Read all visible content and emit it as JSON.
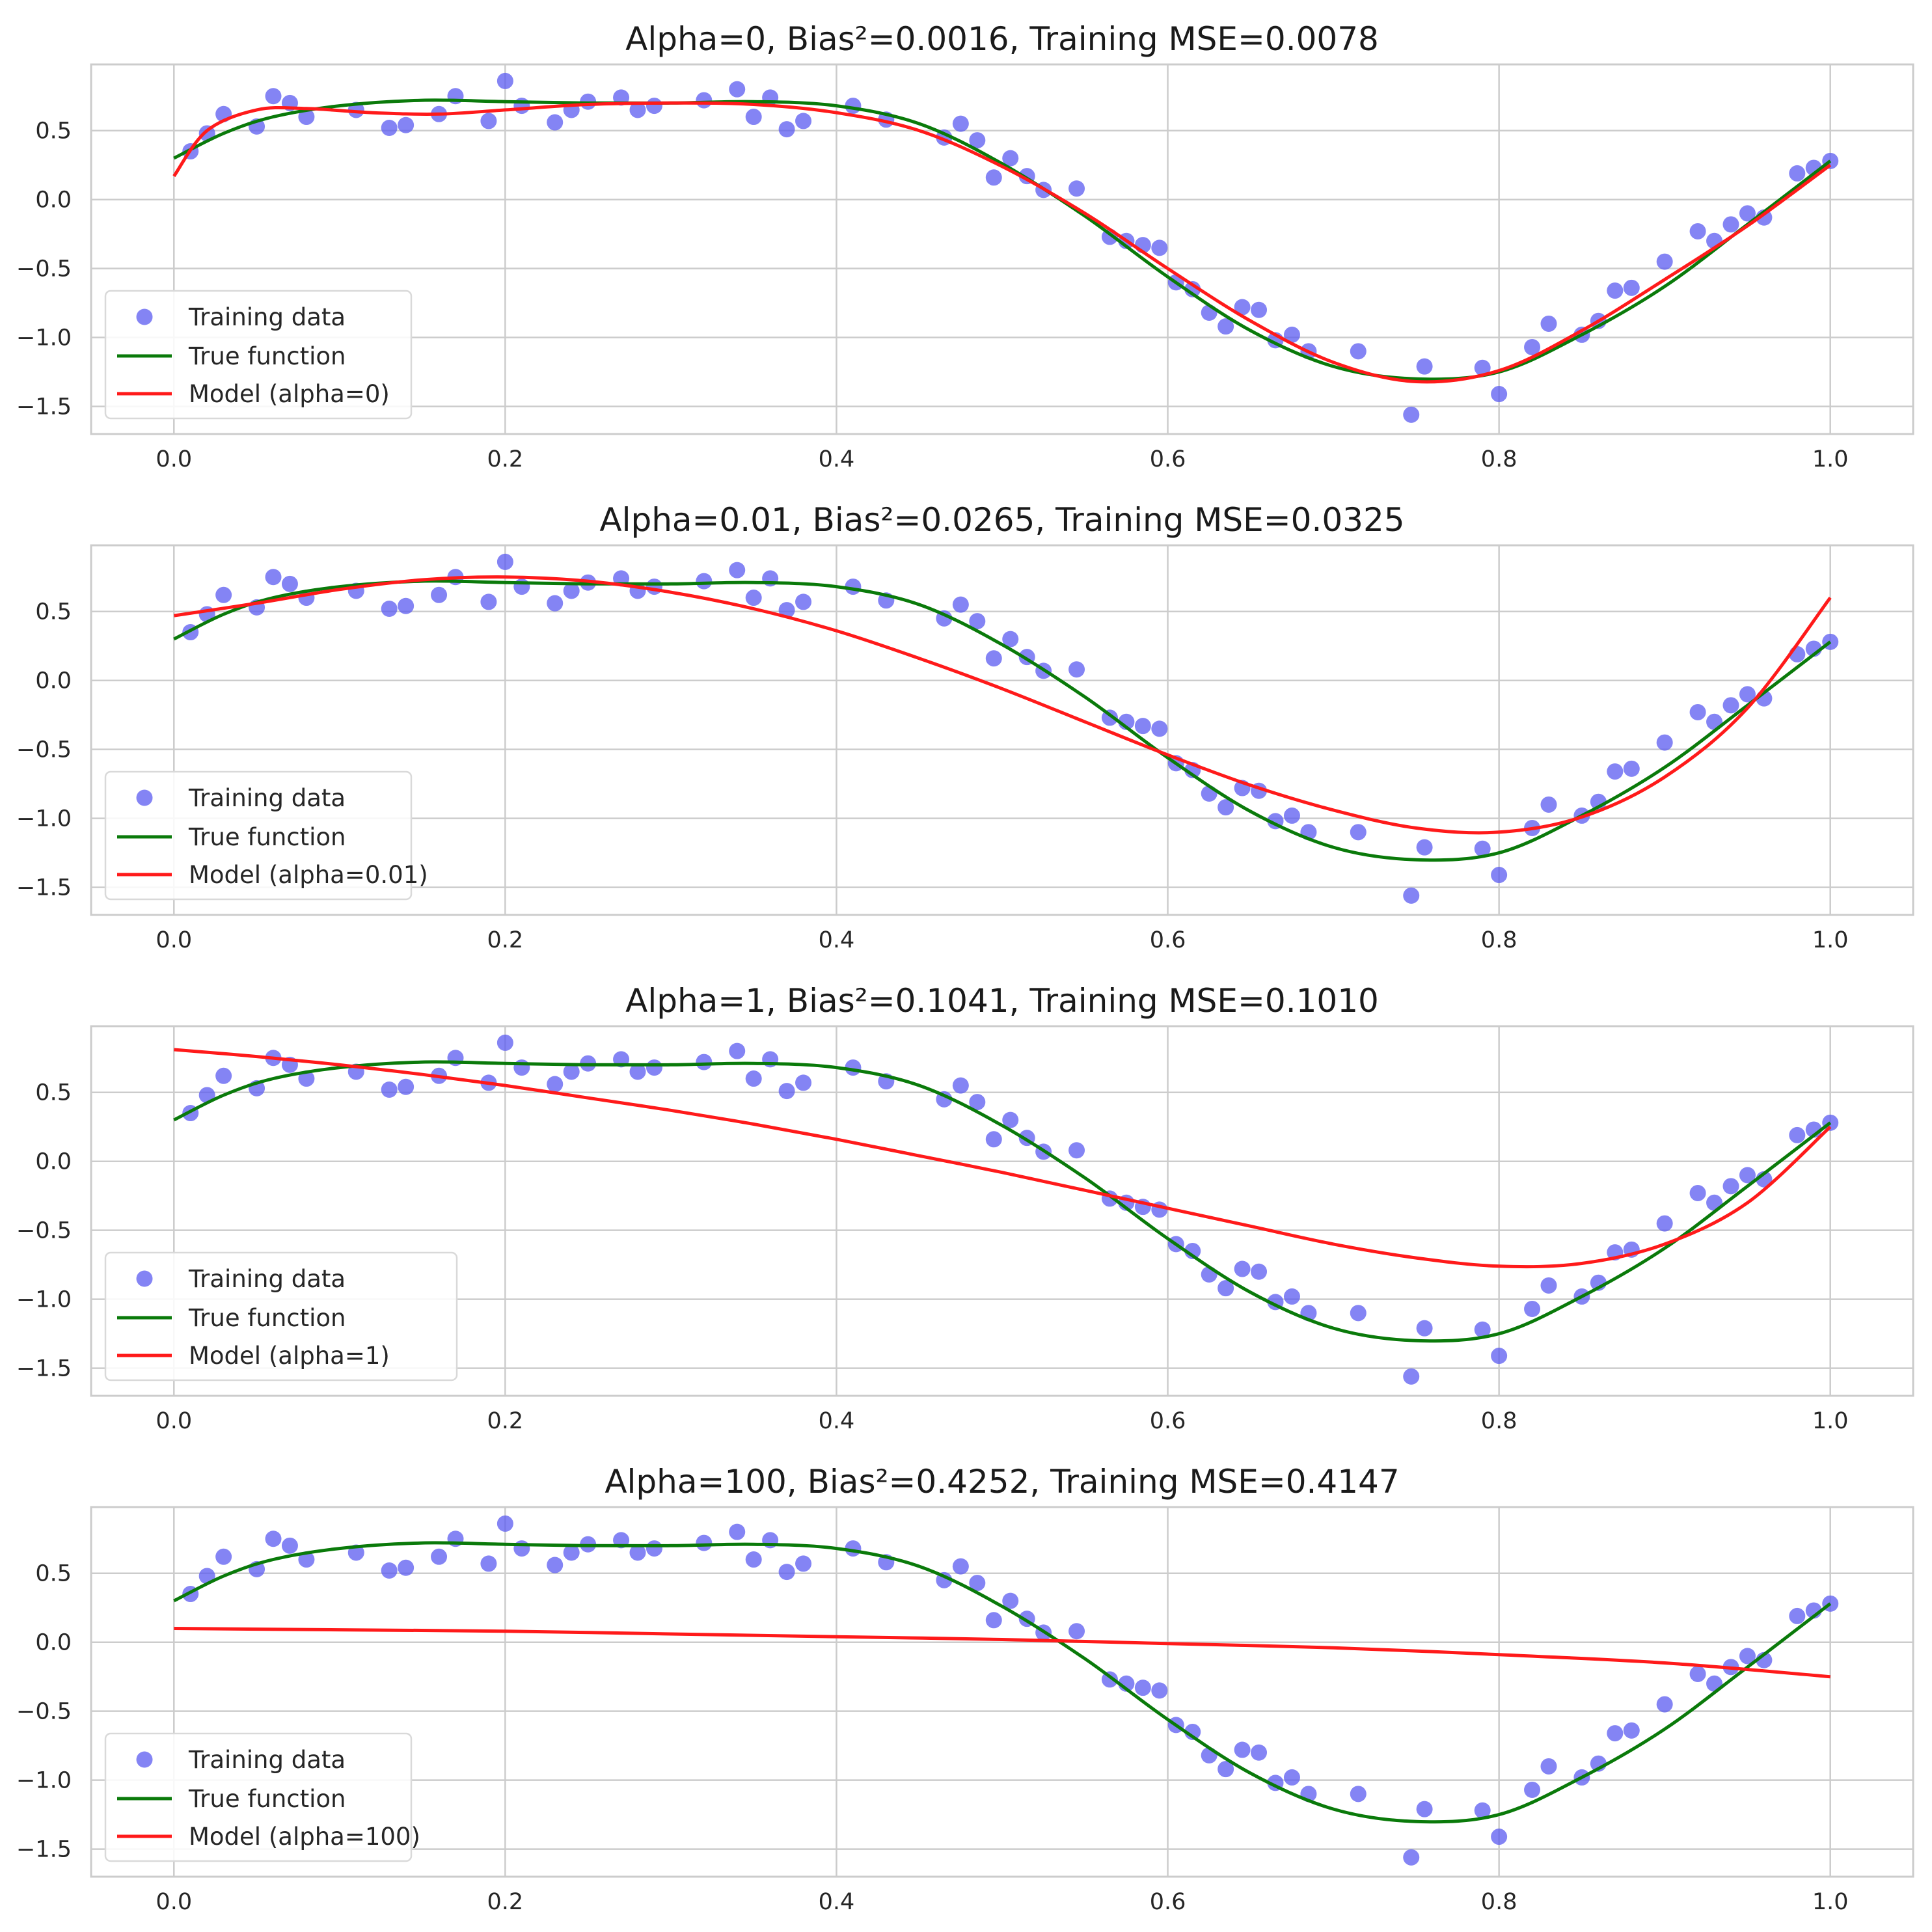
{
  "colors": {
    "scatter": "#5b5bf0",
    "true_function": "#0a7a0a",
    "model": "#ff1a1a",
    "grid": "#cccccc",
    "frame": "#cccccc",
    "background": "#ffffff"
  },
  "chart_data": [
    {
      "type": "line",
      "title": "Alpha=0, Bias²=0.0016, Training MSE=0.0078",
      "xlim": [
        -0.05,
        1.05
      ],
      "ylim": [
        -1.7,
        0.98
      ],
      "xticks": [
        0.0,
        0.2,
        0.4,
        0.6,
        0.8,
        1.0
      ],
      "xtick_labels": [
        "0.0",
        "0.2",
        "0.4",
        "0.6",
        "0.8",
        "1.0"
      ],
      "yticks": [
        0.5,
        0.0,
        -0.5,
        -1.0,
        -1.5
      ],
      "ytick_labels": [
        "0.5",
        "0.0",
        "−0.5",
        "−1.0",
        "−1.5"
      ],
      "grid": true,
      "legend": {
        "placement": "lower-left",
        "entries": [
          "Training data",
          "True function",
          "Model (alpha=0)"
        ]
      },
      "model": {
        "name": "Model (alpha=0)",
        "x": [
          0.0,
          0.02,
          0.05,
          0.08,
          0.12,
          0.16,
          0.2,
          0.25,
          0.3,
          0.35,
          0.4,
          0.45,
          0.5,
          0.55,
          0.6,
          0.65,
          0.7,
          0.75,
          0.8,
          0.85,
          0.9,
          0.95,
          1.0
        ],
        "y": [
          0.17,
          0.5,
          0.65,
          0.66,
          0.63,
          0.62,
          0.65,
          0.69,
          0.7,
          0.69,
          0.63,
          0.5,
          0.24,
          -0.1,
          -0.5,
          -0.88,
          -1.18,
          -1.32,
          -1.24,
          -0.95,
          -0.58,
          -0.19,
          0.25
        ]
      }
    },
    {
      "type": "line",
      "title": "Alpha=0.01, Bias²=0.0265, Training MSE=0.0325",
      "xlim": [
        -0.05,
        1.05
      ],
      "ylim": [
        -1.7,
        0.98
      ],
      "xticks": [
        0.0,
        0.2,
        0.4,
        0.6,
        0.8,
        1.0
      ],
      "xtick_labels": [
        "0.0",
        "0.2",
        "0.4",
        "0.6",
        "0.8",
        "1.0"
      ],
      "yticks": [
        0.5,
        0.0,
        -0.5,
        -1.0,
        -1.5
      ],
      "ytick_labels": [
        "0.5",
        "0.0",
        "−0.5",
        "−1.0",
        "−1.5"
      ],
      "grid": true,
      "legend": {
        "placement": "lower-left",
        "entries": [
          "Training data",
          "True function",
          "Model (alpha=0.01)"
        ]
      },
      "model": {
        "name": "Model (alpha=0.01)",
        "x": [
          0.0,
          0.05,
          0.1,
          0.15,
          0.2,
          0.25,
          0.3,
          0.35,
          0.4,
          0.45,
          0.5,
          0.55,
          0.6,
          0.65,
          0.7,
          0.75,
          0.8,
          0.85,
          0.9,
          0.95,
          1.0
        ],
        "y": [
          0.47,
          0.56,
          0.66,
          0.73,
          0.75,
          0.72,
          0.64,
          0.52,
          0.36,
          0.16,
          -0.06,
          -0.3,
          -0.54,
          -0.76,
          -0.94,
          -1.07,
          -1.1,
          -0.99,
          -0.7,
          -0.2,
          0.6
        ]
      }
    },
    {
      "type": "line",
      "title": "Alpha=1, Bias²=0.1041, Training MSE=0.1010",
      "xlim": [
        -0.05,
        1.05
      ],
      "ylim": [
        -1.7,
        0.98
      ],
      "xticks": [
        0.0,
        0.2,
        0.4,
        0.6,
        0.8,
        1.0
      ],
      "xtick_labels": [
        "0.0",
        "0.2",
        "0.4",
        "0.6",
        "0.8",
        "1.0"
      ],
      "yticks": [
        0.5,
        0.0,
        -0.5,
        -1.0,
        -1.5
      ],
      "ytick_labels": [
        "0.5",
        "0.0",
        "−0.5",
        "−1.0",
        "−1.5"
      ],
      "grid": true,
      "legend": {
        "placement": "lower-left",
        "entries": [
          "Training data",
          "True function",
          "Model (alpha=1)"
        ]
      },
      "model": {
        "name": "Model (alpha=1)",
        "x": [
          0.0,
          0.05,
          0.1,
          0.15,
          0.2,
          0.25,
          0.3,
          0.35,
          0.4,
          0.45,
          0.5,
          0.55,
          0.6,
          0.65,
          0.7,
          0.75,
          0.8,
          0.85,
          0.9,
          0.95,
          1.0
        ],
        "y": [
          0.81,
          0.76,
          0.7,
          0.63,
          0.55,
          0.46,
          0.37,
          0.27,
          0.16,
          0.04,
          -0.08,
          -0.21,
          -0.34,
          -0.47,
          -0.6,
          -0.7,
          -0.76,
          -0.74,
          -0.6,
          -0.3,
          0.25
        ]
      }
    },
    {
      "type": "line",
      "title": "Alpha=100, Bias²=0.4252, Training MSE=0.4147",
      "xlim": [
        -0.05,
        1.05
      ],
      "ylim": [
        -1.7,
        0.98
      ],
      "xticks": [
        0.0,
        0.2,
        0.4,
        0.6,
        0.8,
        1.0
      ],
      "xtick_labels": [
        "0.0",
        "0.2",
        "0.4",
        "0.6",
        "0.8",
        "1.0"
      ],
      "yticks": [
        0.5,
        0.0,
        -0.5,
        -1.0,
        -1.5
      ],
      "ytick_labels": [
        "0.5",
        "0.0",
        "−0.5",
        "−1.0",
        "−1.5"
      ],
      "grid": true,
      "legend": {
        "placement": "lower-left",
        "entries": [
          "Training data",
          "True function",
          "Model (alpha=100)"
        ]
      },
      "model": {
        "name": "Model (alpha=100)",
        "x": [
          0.0,
          0.1,
          0.2,
          0.3,
          0.4,
          0.5,
          0.6,
          0.7,
          0.8,
          0.9,
          1.0
        ],
        "y": [
          0.1,
          0.09,
          0.08,
          0.06,
          0.04,
          0.02,
          -0.01,
          -0.04,
          -0.09,
          -0.15,
          -0.25
        ]
      }
    }
  ],
  "true_function": {
    "name": "True function",
    "x": [
      0.0,
      0.03,
      0.06,
      0.1,
      0.15,
      0.2,
      0.25,
      0.3,
      0.35,
      0.4,
      0.45,
      0.5,
      0.55,
      0.6,
      0.65,
      0.7,
      0.75,
      0.8,
      0.85,
      0.9,
      0.95,
      1.0
    ],
    "y": [
      0.3,
      0.48,
      0.6,
      0.68,
      0.72,
      0.71,
      0.7,
      0.7,
      0.71,
      0.68,
      0.55,
      0.26,
      -0.12,
      -0.56,
      -0.95,
      -1.21,
      -1.3,
      -1.25,
      -0.98,
      -0.63,
      -0.18,
      0.28
    ]
  },
  "training_data": {
    "name": "Training data",
    "x": [
      0.01,
      0.02,
      0.03,
      0.05,
      0.06,
      0.07,
      0.08,
      0.11,
      0.13,
      0.14,
      0.16,
      0.17,
      0.19,
      0.2,
      0.21,
      0.23,
      0.24,
      0.25,
      0.27,
      0.28,
      0.29,
      0.32,
      0.34,
      0.35,
      0.36,
      0.37,
      0.38,
      0.41,
      0.43,
      0.465,
      0.475,
      0.485,
      0.495,
      0.505,
      0.515,
      0.525,
      0.545,
      0.565,
      0.575,
      0.585,
      0.595,
      0.605,
      0.615,
      0.625,
      0.635,
      0.645,
      0.655,
      0.665,
      0.675,
      0.685,
      0.715,
      0.747,
      0.755,
      0.79,
      0.8,
      0.82,
      0.83,
      0.85,
      0.86,
      0.87,
      0.88,
      0.9,
      0.92,
      0.93,
      0.94,
      0.95,
      0.96,
      0.98,
      0.99,
      1.0
    ],
    "y": [
      0.35,
      0.48,
      0.62,
      0.53,
      0.75,
      0.7,
      0.6,
      0.65,
      0.52,
      0.54,
      0.62,
      0.75,
      0.57,
      0.86,
      0.68,
      0.56,
      0.65,
      0.71,
      0.74,
      0.65,
      0.68,
      0.72,
      0.8,
      0.6,
      0.74,
      0.51,
      0.57,
      0.68,
      0.58,
      0.45,
      0.55,
      0.43,
      0.16,
      0.3,
      0.17,
      0.07,
      0.08,
      -0.27,
      -0.3,
      -0.33,
      -0.35,
      -0.6,
      -0.65,
      -0.82,
      -0.92,
      -0.78,
      -0.8,
      -1.02,
      -0.98,
      -1.1,
      -1.1,
      -1.56,
      -1.21,
      -1.22,
      -1.41,
      -1.07,
      -0.9,
      -0.98,
      -0.88,
      -0.66,
      -0.64,
      -0.45,
      -0.23,
      -0.3,
      -0.18,
      -0.1,
      -0.13,
      0.19,
      0.23,
      0.28
    ]
  }
}
